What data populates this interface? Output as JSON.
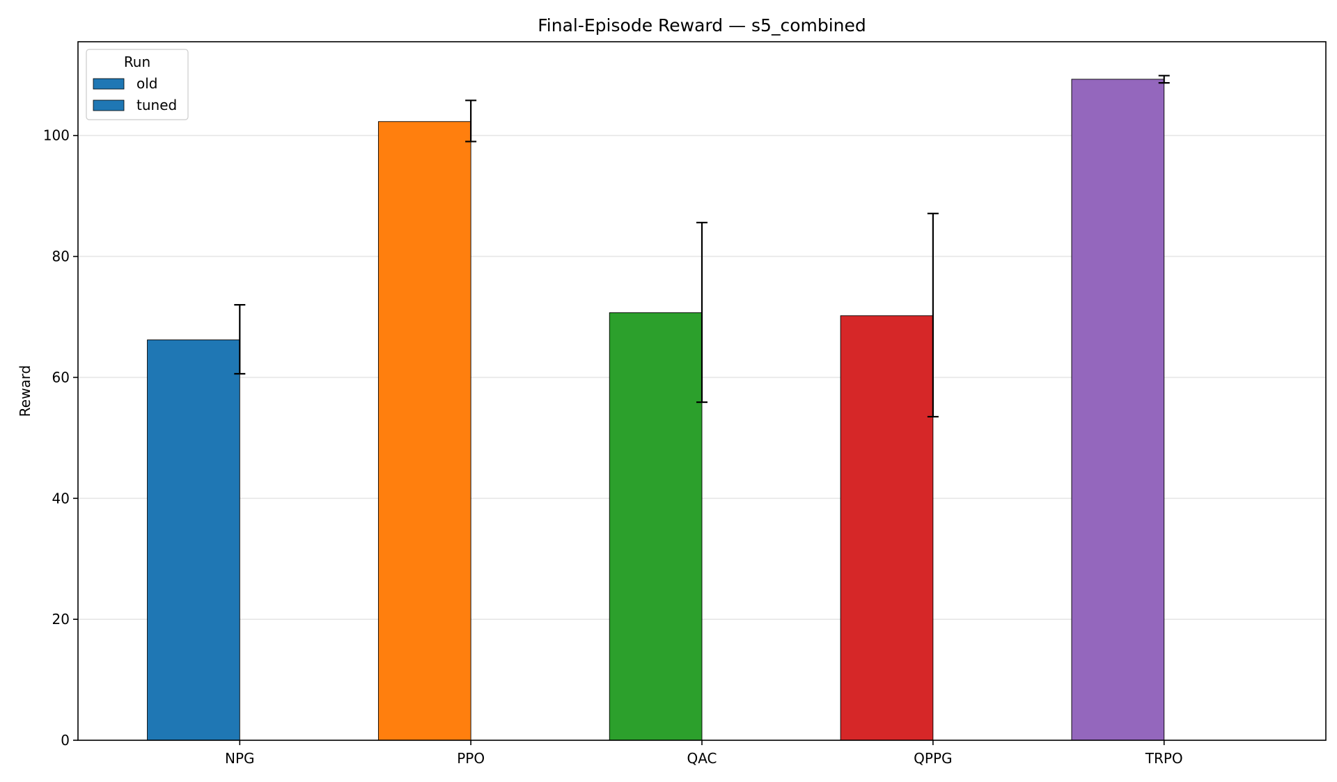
{
  "chart_data": {
    "type": "bar",
    "title": "Final-Episode Reward — s5_combined",
    "xlabel": "",
    "ylabel": "Reward",
    "ylim": [
      0,
      115.5
    ],
    "yticks": [
      0,
      20,
      40,
      60,
      80,
      100
    ],
    "grid": "y-major",
    "categories": [
      "NPG",
      "PPO",
      "QAC",
      "QPPG",
      "TRPO"
    ],
    "colors": [
      "#1f77b4",
      "#ff7f0e",
      "#2ca02c",
      "#d62728",
      "#9467bd"
    ],
    "legend": {
      "title": "Run",
      "placement": "top-left",
      "entries": [
        {
          "label": "old",
          "color": "#1f77b4"
        },
        {
          "label": "tuned",
          "color": "#1f77b4"
        }
      ]
    },
    "series": [
      {
        "name": "old",
        "values": [
          66.2,
          102.3,
          70.7,
          70.2,
          109.3
        ],
        "error_low": [
          60.6,
          99.0,
          55.9,
          53.5,
          108.7
        ],
        "error_high": [
          72.0,
          105.8,
          85.6,
          87.1,
          109.9
        ]
      },
      {
        "name": "tuned",
        "values": [
          null,
          null,
          null,
          null,
          null
        ]
      }
    ]
  }
}
